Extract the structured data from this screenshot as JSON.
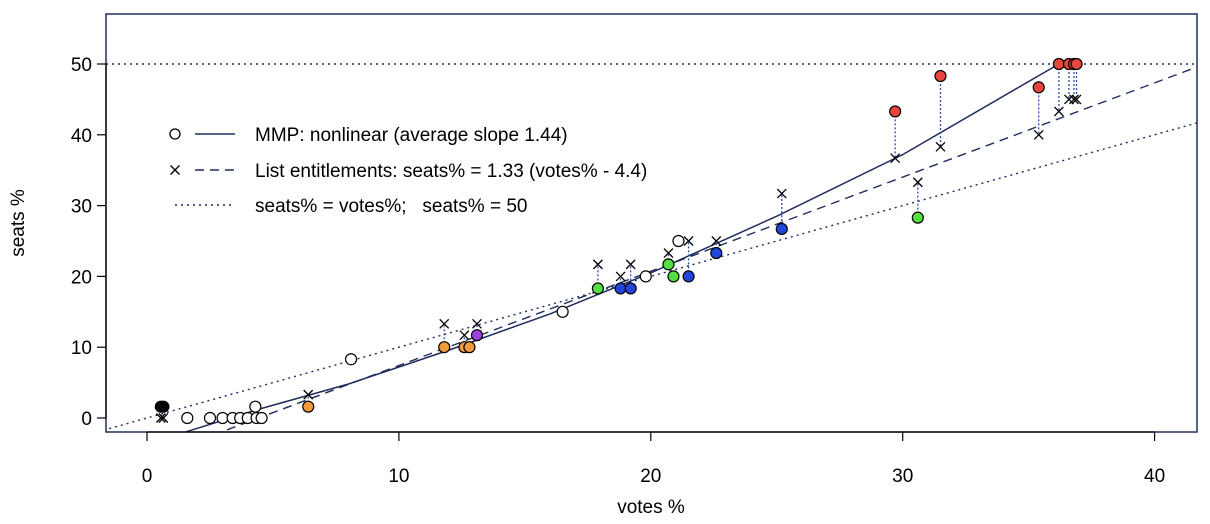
{
  "chart_data": {
    "type": "scatter",
    "xlabel": "votes %",
    "ylabel": "seats %",
    "xlim": [
      -1.5,
      41.7
    ],
    "ylim": [
      -2,
      57
    ],
    "x_ticks": [
      0,
      10,
      20,
      30,
      40
    ],
    "y_ticks": [
      0,
      10,
      20,
      30,
      40,
      50
    ],
    "majority_line": 50,
    "colors": {
      "red": "#e8453c",
      "blue": "#2247d8",
      "green": "#55dd44",
      "orange": "#f09a3a",
      "purple": "#9b44dd",
      "black": "#000000",
      "white": "#ffffff",
      "connector": "#2a4fa8"
    },
    "legend": [
      {
        "marker": "o",
        "line": "solid",
        "label": "MMP: nonlinear (average slope 1.44)"
      },
      {
        "marker": "x",
        "line": "dashed",
        "label": "List entitlements: seats% = 1.33 (votes% - 4.4)"
      },
      {
        "marker": "",
        "line": "dotted",
        "label": "seats% = votes%;   seats% = 50"
      }
    ],
    "lines": {
      "equality": {
        "label": "seats% = votes%",
        "x": [
          -1.5,
          41.7
        ],
        "y": [
          -1.5,
          41.7
        ]
      },
      "list": {
        "label": "seats% = 1.33 (votes% - 4.4)",
        "x": [
          1.5,
          41.7
        ],
        "y": [
          -3.9,
          49.6
        ]
      },
      "mmp_nonlinear": {
        "label": "MMP: nonlinear",
        "x": [
          1.5,
          4.4,
          8,
          12,
          16,
          20,
          25,
          30,
          36.2
        ],
        "y": [
          -2,
          1.2,
          4.8,
          9.6,
          14.7,
          20.5,
          28.5,
          37.2,
          50
        ]
      }
    },
    "points": [
      {
        "x": 0.55,
        "y": 1.6,
        "fill": "black",
        "list": 0
      },
      {
        "x": 0.65,
        "y": 1.6,
        "fill": "black",
        "list": 0
      },
      {
        "x": 1.6,
        "y": 0,
        "fill": "white"
      },
      {
        "x": 2.5,
        "y": 0,
        "fill": "white"
      },
      {
        "x": 3.0,
        "y": 0,
        "fill": "white"
      },
      {
        "x": 3.4,
        "y": 0,
        "fill": "white"
      },
      {
        "x": 3.7,
        "y": 0,
        "fill": "white"
      },
      {
        "x": 4.0,
        "y": 0,
        "fill": "white"
      },
      {
        "x": 4.3,
        "y": 1.6,
        "fill": "white"
      },
      {
        "x": 4.35,
        "y": 0,
        "fill": "white"
      },
      {
        "x": 4.55,
        "y": 0,
        "fill": "white"
      },
      {
        "x": 6.4,
        "y": 1.6,
        "fill": "orange",
        "list": 3.3
      },
      {
        "x": 8.1,
        "y": 8.3,
        "fill": "white"
      },
      {
        "x": 11.8,
        "y": 10.0,
        "fill": "orange",
        "list": 13.3
      },
      {
        "x": 12.6,
        "y": 10.0,
        "fill": "orange",
        "list": 11.7
      },
      {
        "x": 12.8,
        "y": 10.0,
        "fill": "orange"
      },
      {
        "x": 13.1,
        "y": 11.7,
        "fill": "purple",
        "list": 13.3
      },
      {
        "x": 16.5,
        "y": 15.0,
        "fill": "white"
      },
      {
        "x": 17.9,
        "y": 18.3,
        "fill": "green",
        "list": 21.7
      },
      {
        "x": 18.8,
        "y": 18.3,
        "fill": "blue",
        "list": 20.0
      },
      {
        "x": 19.2,
        "y": 18.3,
        "fill": "blue",
        "list": 21.7
      },
      {
        "x": 19.8,
        "y": 20.0,
        "fill": "white"
      },
      {
        "x": 20.7,
        "y": 21.7,
        "fill": "green",
        "list": 23.3
      },
      {
        "x": 20.9,
        "y": 20.0,
        "fill": "green"
      },
      {
        "x": 21.1,
        "y": 25.0,
        "fill": "white"
      },
      {
        "x": 21.5,
        "y": 20.0,
        "fill": "blue",
        "list": 25.0
      },
      {
        "x": 22.6,
        "y": 23.3,
        "fill": "blue",
        "list": 25.0
      },
      {
        "x": 25.2,
        "y": 26.7,
        "fill": "blue",
        "list": 31.7
      },
      {
        "x": 29.7,
        "y": 43.3,
        "fill": "red",
        "list": 36.7
      },
      {
        "x": 30.6,
        "y": 28.3,
        "fill": "green",
        "list": 33.3
      },
      {
        "x": 31.5,
        "y": 48.3,
        "fill": "red",
        "list": 38.3
      },
      {
        "x": 35.4,
        "y": 46.7,
        "fill": "red",
        "list": 40.0
      },
      {
        "x": 36.2,
        "y": 50.0,
        "fill": "red",
        "list": 43.3
      },
      {
        "x": 36.6,
        "y": 50.0,
        "fill": "red",
        "list": 45.0
      },
      {
        "x": 36.8,
        "y": 50.0,
        "fill": "red",
        "list": 45.0
      },
      {
        "x": 36.9,
        "y": 50.0,
        "fill": "red",
        "list": 45.0
      }
    ]
  }
}
